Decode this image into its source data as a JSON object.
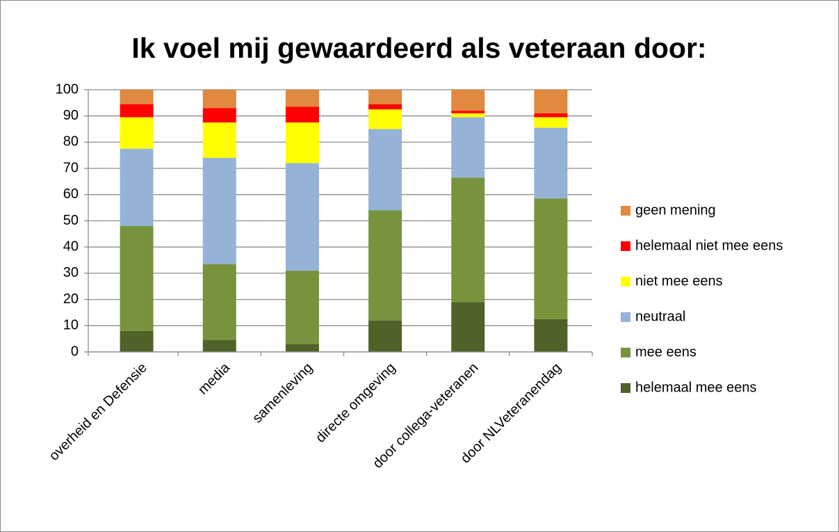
{
  "chart_data": {
    "type": "stacked_bar",
    "title": "Ik voel mij gewaardeerd als veteraan door:",
    "categories": [
      "overheid en Defensie",
      "media",
      "samenleving",
      "directe omgeving",
      "door collega-veteranen",
      "door NLVeteranendag"
    ],
    "series": [
      {
        "name": "helemaal mee eens",
        "color": "#4f6228",
        "values": [
          8,
          4.5,
          3,
          12,
          19,
          12.5
        ]
      },
      {
        "name": "mee eens",
        "color": "#77933c",
        "values": [
          40,
          29,
          28,
          42,
          47.5,
          46
        ]
      },
      {
        "name": "neutraal",
        "color": "#95b3d7",
        "values": [
          29.5,
          40.5,
          41,
          31,
          23,
          27
        ]
      },
      {
        "name": "niet mee eens",
        "color": "#ffff00",
        "values": [
          12,
          13.5,
          15.5,
          7.5,
          1.5,
          4
        ]
      },
      {
        "name": "helemaal niet mee eens",
        "color": "#ff0000",
        "values": [
          5,
          5.5,
          6,
          2,
          1,
          1.5
        ]
      },
      {
        "name": "geen mening",
        "color": "#e0893f",
        "values": [
          5.5,
          7,
          6.5,
          5.5,
          8,
          9
        ]
      }
    ],
    "ylim": [
      0,
      100
    ],
    "yticks": [
      0,
      10,
      20,
      30,
      40,
      50,
      60,
      70,
      80,
      90,
      100
    ],
    "grid": true,
    "legend": "right"
  }
}
